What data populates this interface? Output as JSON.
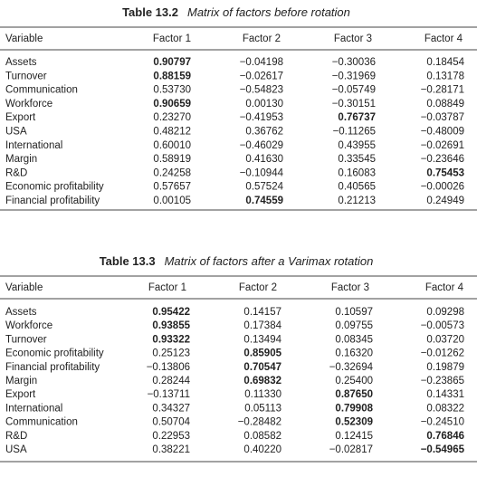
{
  "tables": [
    {
      "caption_label": "Table 13.2",
      "caption_text": "Matrix of factors before rotation",
      "header": [
        "Variable",
        "Factor 1",
        "Factor 2",
        "Factor 3",
        "Factor 4"
      ],
      "rows": [
        [
          "Assets",
          {
            "text": "0.90797",
            "bold": true
          },
          "−0.04198",
          "−0.30036",
          "0.18454"
        ],
        [
          "Turnover",
          {
            "text": "0.88159",
            "bold": true
          },
          "−0.02617",
          "−0.31969",
          "0.13178"
        ],
        [
          "Communication",
          "0.53730",
          "−0.54823",
          "−0.05749",
          "−0.28171"
        ],
        [
          "Workforce",
          {
            "text": "0.90659",
            "bold": true
          },
          "0.00130",
          "−0.30151",
          "0.08849"
        ],
        [
          "Export",
          "0.23270",
          "−0.41953",
          {
            "text": "0.76737",
            "bold": true
          },
          "−0.03787"
        ],
        [
          "USA",
          "0.48212",
          "0.36762",
          "−0.11265",
          "−0.48009"
        ],
        [
          "International",
          "0.60010",
          "−0.46029",
          "0.43955",
          "−0.02691"
        ],
        [
          "Margin",
          "0.58919",
          "0.41630",
          "0.33545",
          "−0.23646"
        ],
        [
          "R&D",
          "0.24258",
          "−0.10944",
          "0.16083",
          {
            "text": "0.75453",
            "bold": true
          }
        ],
        [
          "Economic profitability",
          "0.57657",
          "0.57524",
          "0.40565",
          "−0.00026"
        ],
        [
          "Financial profitability",
          "0.00105",
          {
            "text": "0.74559",
            "bold": true
          },
          "0.21213",
          "0.24949"
        ]
      ]
    },
    {
      "caption_label": "Table 13.3",
      "caption_text": "Matrix of factors after a Varimax rotation",
      "header": [
        "Variable",
        "Factor 1",
        "Factor 2",
        "Factor 3",
        "Factor 4"
      ],
      "rows": [
        [
          "Assets",
          {
            "text": "0.95422",
            "bold": true
          },
          "0.14157",
          "0.10597",
          "0.09298"
        ],
        [
          "Workforce",
          {
            "text": "0.93855",
            "bold": true
          },
          "0.17384",
          "0.09755",
          "−0.00573"
        ],
        [
          "Turnover",
          {
            "text": "0.93322",
            "bold": true
          },
          "0.13494",
          "0.08345",
          "0.03720"
        ],
        [
          "Economic profitability",
          "0.25123",
          {
            "text": "0.85905",
            "bold": true
          },
          "0.16320",
          "−0.01262"
        ],
        [
          "Financial profitability",
          "−0.13806",
          {
            "text": "0.70547",
            "bold": true
          },
          "−0.32694",
          "0.19879"
        ],
        [
          "Margin",
          "0.28244",
          {
            "text": "0.69832",
            "bold": true
          },
          "0.25400",
          "−0.23865"
        ],
        [
          "Export",
          "−0.13711",
          "0.11330",
          {
            "text": "0.87650",
            "bold": true
          },
          "0.14331"
        ],
        [
          "International",
          "0.34327",
          "0.05113",
          {
            "text": "0.79908",
            "bold": true
          },
          "0.08322"
        ],
        [
          "Communication",
          "0.50704",
          "−0.28482",
          {
            "text": "0.52309",
            "bold": true
          },
          "−0.24510"
        ],
        [
          "R&D",
          "0.22953",
          "0.08582",
          "0.12415",
          {
            "text": "0.76846",
            "bold": true
          }
        ],
        [
          "USA",
          "0.38221",
          "0.40220",
          "−0.02817",
          {
            "text": "−0.54965",
            "bold": true
          }
        ]
      ]
    }
  ]
}
